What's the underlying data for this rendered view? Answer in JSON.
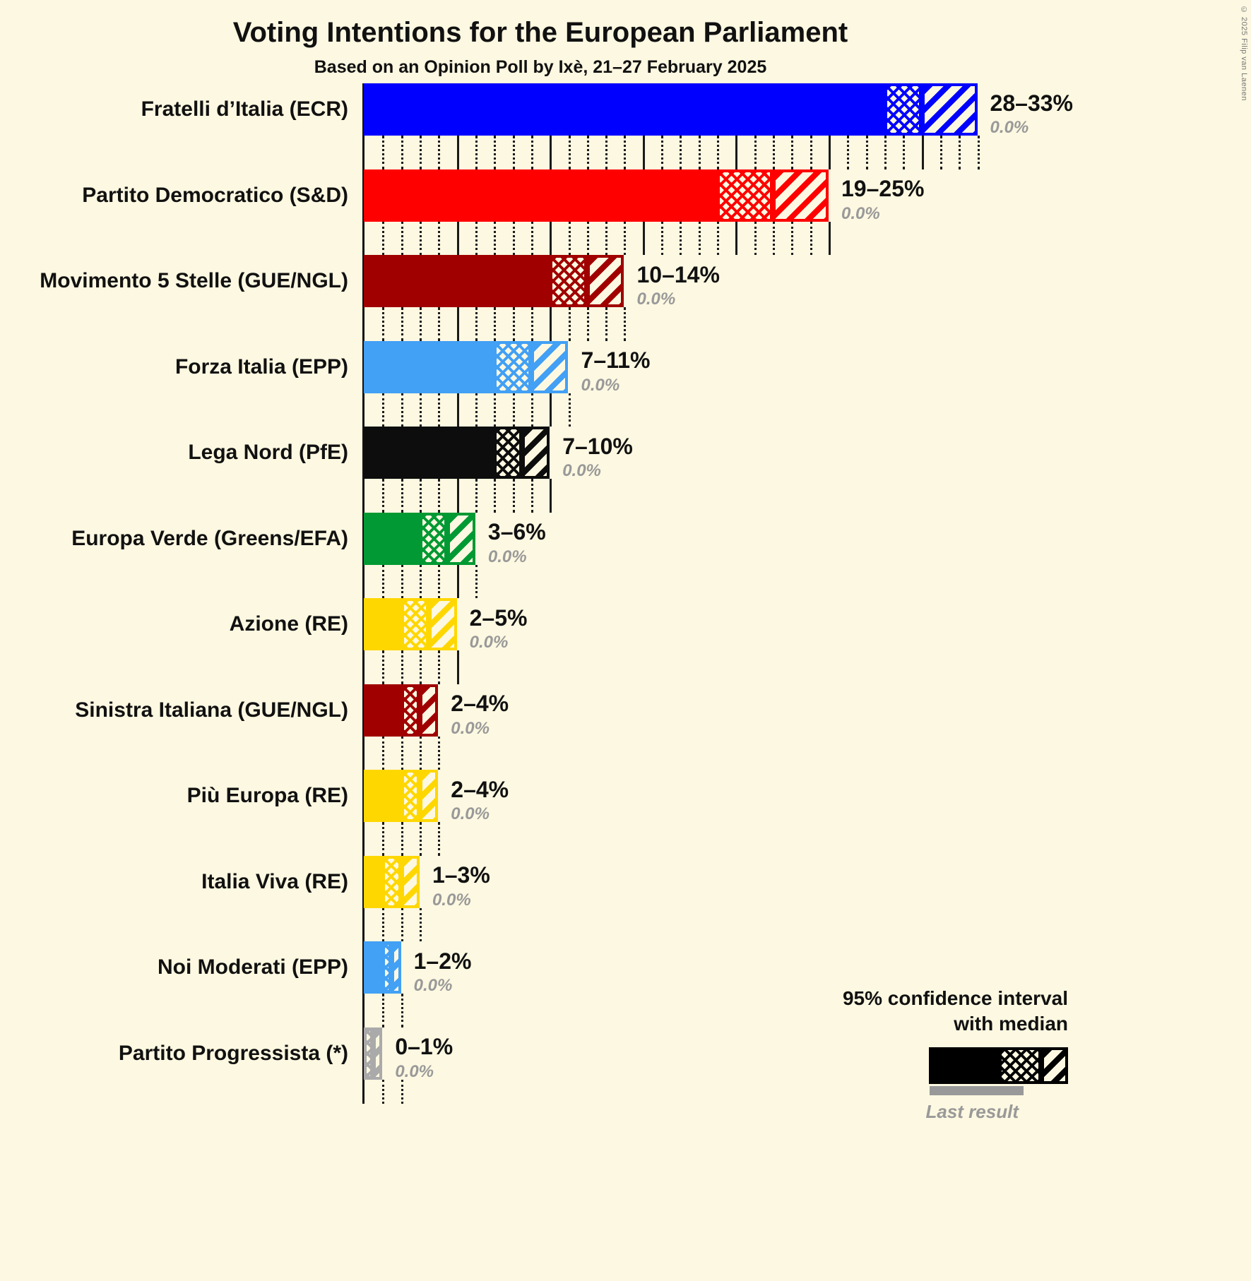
{
  "title": "Voting Intentions for the European Parliament",
  "subtitle": "Based on an Opinion Poll by Ixè, 21–27 February 2025",
  "copyright": "© 2025 Filip van Laenen",
  "legend": {
    "ci_line1": "95% confidence interval",
    "ci_line2": "with median",
    "last_result_label": "Last result",
    "sample_color": "#000000",
    "last_result_color": "#999999"
  },
  "chart_data": {
    "type": "bar",
    "orientation": "horizontal",
    "unit": "percent",
    "xlim": [
      0,
      33
    ],
    "minor_tick": 1,
    "major_tick": 5,
    "grid": "dotted-minor-solid-major",
    "legend_position": "bottom-right",
    "parties": [
      {
        "label": "Fratelli d’Italia (ECR)",
        "color": "#0000FF",
        "ci_low": 28,
        "median": 30,
        "ci_high": 33,
        "range_label": "28–33%",
        "last_result": "0.0%"
      },
      {
        "label": "Partito Democratico (S&D)",
        "color": "#FF0000",
        "ci_low": 19,
        "median": 22,
        "ci_high": 25,
        "range_label": "19–25%",
        "last_result": "0.0%"
      },
      {
        "label": "Movimento 5 Stelle (GUE/NGL)",
        "color": "#A00000",
        "ci_low": 10,
        "median": 12,
        "ci_high": 14,
        "range_label": "10–14%",
        "last_result": "0.0%"
      },
      {
        "label": "Forza Italia (EPP)",
        "color": "#42A0F5",
        "ci_low": 7,
        "median": 9,
        "ci_high": 11,
        "range_label": "7–11%",
        "last_result": "0.0%"
      },
      {
        "label": "Lega Nord (PfE)",
        "color": "#0D0D0D",
        "ci_low": 7,
        "median": 8.5,
        "ci_high": 10,
        "range_label": "7–10%",
        "last_result": "0.0%"
      },
      {
        "label": "Europa Verde (Greens/EFA)",
        "color": "#009933",
        "ci_low": 3,
        "median": 4.5,
        "ci_high": 6,
        "range_label": "3–6%",
        "last_result": "0.0%"
      },
      {
        "label": "Azione (RE)",
        "color": "#FFD700",
        "ci_low": 2,
        "median": 3.5,
        "ci_high": 5,
        "range_label": "2–5%",
        "last_result": "0.0%"
      },
      {
        "label": "Sinistra Italiana (GUE/NGL)",
        "color": "#A00000",
        "ci_low": 2,
        "median": 3,
        "ci_high": 4,
        "range_label": "2–4%",
        "last_result": "0.0%"
      },
      {
        "label": "Più Europa (RE)",
        "color": "#FFD700",
        "ci_low": 2,
        "median": 3,
        "ci_high": 4,
        "range_label": "2–4%",
        "last_result": "0.0%"
      },
      {
        "label": "Italia Viva (RE)",
        "color": "#FFD700",
        "ci_low": 1,
        "median": 2,
        "ci_high": 3,
        "range_label": "1–3%",
        "last_result": "0.0%"
      },
      {
        "label": "Noi Moderati (EPP)",
        "color": "#42A0F5",
        "ci_low": 1,
        "median": 1.5,
        "ci_high": 2,
        "range_label": "1–2%",
        "last_result": "0.0%"
      },
      {
        "label": "Partito Progressista (*)",
        "color": "#AAAAAA",
        "ci_low": 0,
        "median": 0.5,
        "ci_high": 1,
        "range_label": "0–1%",
        "last_result": "0.0%"
      }
    ]
  }
}
